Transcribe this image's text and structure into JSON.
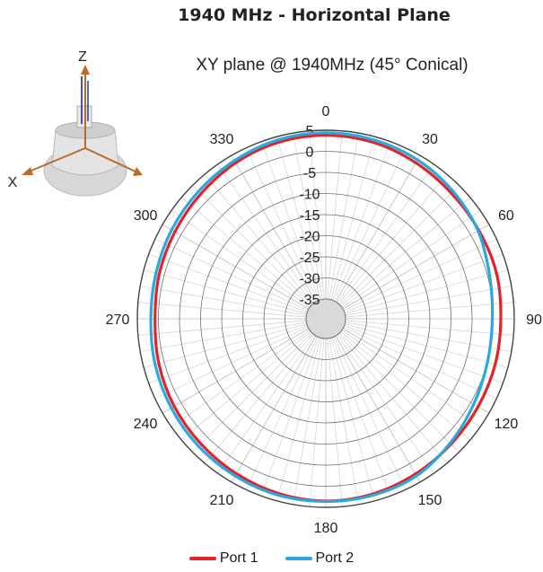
{
  "page_title": "1940 MHz - Horizontal Plane",
  "axis_icon": {
    "z_label": "Z",
    "x_label": "X"
  },
  "chart_data": {
    "type": "polar-line",
    "title": "XY plane @ 1940MHz (45° Conical)",
    "angle_unit": "degrees",
    "angle_ticks": [
      0,
      30,
      60,
      90,
      120,
      150,
      180,
      210,
      240,
      270,
      300,
      330
    ],
    "radial_ticks": [
      5,
      0,
      -5,
      -10,
      -15,
      -20,
      -25,
      -30,
      -35
    ],
    "rlim": [
      -35,
      5
    ],
    "series": [
      {
        "name": "Port 1",
        "color": "#e2232a",
        "angles": [
          0,
          15,
          30,
          45,
          60,
          75,
          90,
          105,
          120,
          135,
          150,
          165,
          180,
          195,
          210,
          225,
          240,
          255,
          270,
          285,
          300,
          315,
          330,
          345,
          360
        ],
        "values": [
          3.8,
          3.6,
          3.0,
          2.4,
          2.2,
          2.2,
          1.8,
          1.9,
          2.0,
          2.3,
          2.8,
          3.3,
          3.5,
          3.2,
          2.7,
          2.2,
          1.8,
          1.3,
          0.8,
          1.2,
          1.6,
          2.2,
          3.0,
          3.6,
          3.8
        ]
      },
      {
        "name": "Port 2",
        "color": "#29a9df",
        "angles": [
          0,
          15,
          30,
          45,
          60,
          75,
          90,
          105,
          120,
          135,
          150,
          165,
          180,
          195,
          210,
          225,
          240,
          255,
          270,
          285,
          300,
          315,
          330,
          345,
          360
        ],
        "values": [
          4.4,
          4.2,
          3.8,
          3.0,
          2.0,
          0.5,
          -0.2,
          0.0,
          0.8,
          2.0,
          3.3,
          3.6,
          3.6,
          3.6,
          3.3,
          3.0,
          2.6,
          2.2,
          1.8,
          2.0,
          2.5,
          3.0,
          3.6,
          4.2,
          4.4
        ]
      }
    ],
    "legend_position": "bottom",
    "grid": true
  }
}
